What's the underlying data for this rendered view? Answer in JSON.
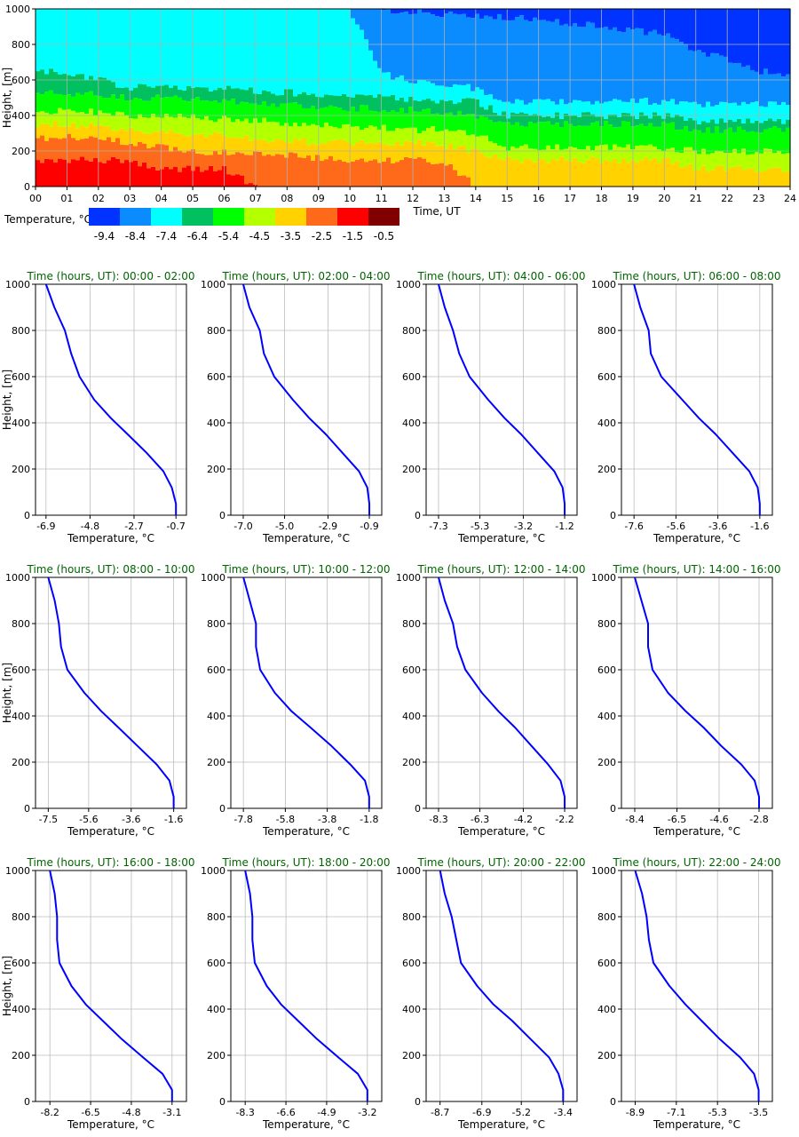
{
  "heatmap": {
    "ylabel": "Height, [m]",
    "xlabel": "Time, UT",
    "x_ticks": [
      "00",
      "01",
      "02",
      "03",
      "04",
      "05",
      "06",
      "07",
      "08",
      "09",
      "10",
      "11",
      "12",
      "13",
      "14",
      "15",
      "16",
      "17",
      "18",
      "19",
      "20",
      "21",
      "22",
      "23",
      "24"
    ],
    "y_ticks": [
      "0",
      "200",
      "400",
      "600",
      "800",
      "1000"
    ],
    "colorbar_label": "Temperature, °C",
    "colorbar_values": [
      "-9.4",
      "-8.4",
      "-7.4",
      "-6.4",
      "-5.4",
      "-4.5",
      "-3.5",
      "-2.5",
      "-1.5",
      "-0.5"
    ],
    "colors": [
      "#0033ff",
      "#0a8cff",
      "#00ffff",
      "#00c060",
      "#00ff00",
      "#b4ff00",
      "#ffd200",
      "#ff6a1a",
      "#ff0000",
      "#800000"
    ]
  },
  "profiles": {
    "title_prefix": "Time (hours, UT): ",
    "ylabel": "Height, [m]",
    "xlabel": "Temperature, °C",
    "y_ticks": [
      "0",
      "200",
      "400",
      "600",
      "800",
      "1000"
    ],
    "title_color": "#006400",
    "line_color": "#0000ff"
  },
  "chart_data": [
    {
      "type": "heatmap",
      "x_range_hours": [
        0,
        24
      ],
      "y_range_m": [
        0,
        1000
      ],
      "bands_description": "temperature layers (band boundary heights in m, per hour)",
      "band_hours": [
        0,
        1,
        2,
        3,
        4,
        5,
        6,
        7,
        8,
        9,
        10,
        11,
        12,
        13,
        14,
        15,
        16,
        17,
        18,
        19,
        20,
        21,
        22,
        23,
        24
      ],
      "band_boundaries_m": {
        "-1.5|-2.5": [
          150,
          150,
          150,
          150,
          100,
          100,
          100,
          0,
          0,
          0,
          0,
          0,
          0,
          0,
          0,
          0,
          0,
          0,
          0,
          0,
          0,
          0,
          0,
          0,
          0
        ],
        "-2.5|-3.5": [
          270,
          280,
          270,
          250,
          220,
          200,
          190,
          180,
          180,
          160,
          150,
          150,
          150,
          140,
          0,
          0,
          0,
          0,
          0,
          0,
          0,
          0,
          0,
          0,
          0
        ],
        "-3.5|-4.5": [
          350,
          350,
          340,
          320,
          300,
          300,
          290,
          270,
          260,
          250,
          250,
          250,
          250,
          230,
          200,
          150,
          150,
          150,
          150,
          150,
          150,
          100,
          100,
          100,
          100
        ],
        "-4.5|-5.4": [
          430,
          420,
          420,
          400,
          390,
          390,
          380,
          370,
          360,
          350,
          340,
          330,
          320,
          320,
          300,
          220,
          220,
          220,
          220,
          220,
          220,
          200,
          200,
          200,
          200
        ],
        "-5.4|-6.4": [
          530,
          520,
          520,
          500,
          500,
          490,
          480,
          470,
          460,
          450,
          440,
          440,
          430,
          420,
          400,
          350,
          350,
          350,
          350,
          350,
          350,
          320,
          320,
          320,
          320
        ],
        "-6.4|-7.4": [
          650,
          640,
          600,
          560,
          560,
          560,
          550,
          540,
          530,
          520,
          510,
          500,
          490,
          480,
          480,
          400,
          400,
          400,
          400,
          400,
          400,
          370,
          370,
          370,
          370
        ],
        "-7.4|-8.4": [
          1000,
          1000,
          1000,
          1000,
          1000,
          1000,
          1000,
          1000,
          1000,
          1000,
          1000,
          640,
          590,
          580,
          550,
          480,
          480,
          480,
          480,
          480,
          480,
          460,
          460,
          460,
          460
        ],
        "-8.4|-9.4": [
          1000,
          1000,
          1000,
          1000,
          1000,
          1000,
          1000,
          1000,
          1000,
          1000,
          1000,
          1000,
          980,
          970,
          960,
          950,
          940,
          920,
          900,
          880,
          860,
          760,
          720,
          650,
          630
        ]
      },
      "xlabel": "Time, UT",
      "ylabel": "Height, [m]",
      "colorbar_label": "Temperature, °C"
    },
    {
      "type": "line",
      "title": "Time (hours, UT): 00:00 - 02:00",
      "xlabel": "Temperature, °C",
      "ylabel": "Height, [m]",
      "xlim": [
        -7.4,
        -0.2
      ],
      "x_ticks": [
        "-6.9",
        "-4.8",
        "-2.7",
        "-0.7"
      ],
      "ylim": [
        0,
        1000
      ],
      "series": [
        {
          "x": [
            -6.9,
            -6.5,
            -6.0,
            -5.7,
            -5.3,
            -4.6,
            -3.8,
            -3.0,
            -2.1,
            -1.3,
            -0.9,
            -0.7,
            -0.7
          ],
          "y": [
            1000,
            900,
            800,
            700,
            600,
            500,
            420,
            350,
            270,
            190,
            120,
            50,
            0
          ]
        }
      ]
    },
    {
      "type": "line",
      "title": "Time (hours, UT): 02:00 - 04:00",
      "xlabel": "Temperature, °C",
      "ylabel": "Height, [m]",
      "xlim": [
        -7.6,
        -0.3
      ],
      "x_ticks": [
        "-7.0",
        "-5.0",
        "-2.9",
        "-0.9"
      ],
      "ylim": [
        0,
        1000
      ],
      "series": [
        {
          "x": [
            -7.0,
            -6.7,
            -6.2,
            -6.0,
            -5.5,
            -4.6,
            -3.8,
            -3.0,
            -2.2,
            -1.4,
            -1.0,
            -0.9,
            -0.9
          ],
          "y": [
            1000,
            900,
            800,
            700,
            600,
            500,
            420,
            350,
            270,
            190,
            120,
            50,
            0
          ]
        }
      ]
    },
    {
      "type": "line",
      "title": "Time (hours, UT): 04:00 - 06:00",
      "xlabel": "Temperature, °C",
      "ylabel": "Height, [m]",
      "xlim": [
        -7.9,
        -0.6
      ],
      "x_ticks": [
        "-7.3",
        "-5.3",
        "-3.2",
        "-1.2"
      ],
      "ylim": [
        0,
        1000
      ],
      "series": [
        {
          "x": [
            -7.3,
            -7.0,
            -6.6,
            -6.3,
            -5.8,
            -4.9,
            -4.1,
            -3.3,
            -2.5,
            -1.7,
            -1.3,
            -1.2,
            -1.2
          ],
          "y": [
            1000,
            900,
            800,
            700,
            600,
            500,
            420,
            350,
            270,
            190,
            120,
            50,
            0
          ]
        }
      ]
    },
    {
      "type": "line",
      "title": "Time (hours, UT): 06:00 - 08:00",
      "xlabel": "Temperature, °C",
      "ylabel": "Height, [m]",
      "xlim": [
        -8.2,
        -1.0
      ],
      "x_ticks": [
        "-7.6",
        "-5.6",
        "-3.6",
        "-1.6"
      ],
      "ylim": [
        0,
        1000
      ],
      "series": [
        {
          "x": [
            -7.6,
            -7.3,
            -6.9,
            -6.8,
            -6.3,
            -5.3,
            -4.5,
            -3.7,
            -2.9,
            -2.1,
            -1.7,
            -1.6,
            -1.6
          ],
          "y": [
            1000,
            900,
            800,
            700,
            600,
            500,
            420,
            350,
            270,
            190,
            120,
            50,
            0
          ]
        }
      ]
    },
    {
      "type": "line",
      "title": "Time (hours, UT): 08:00 - 10:00",
      "xlabel": "Temperature, °C",
      "ylabel": "Height, [m]",
      "xlim": [
        -8.1,
        -1.0
      ],
      "x_ticks": [
        "-7.5",
        "-5.6",
        "-3.6",
        "-1.6"
      ],
      "ylim": [
        0,
        1000
      ],
      "series": [
        {
          "x": [
            -7.5,
            -7.2,
            -7.0,
            -6.9,
            -6.6,
            -5.8,
            -5.0,
            -4.2,
            -3.3,
            -2.4,
            -1.8,
            -1.6,
            -1.6
          ],
          "y": [
            1000,
            900,
            800,
            700,
            600,
            500,
            420,
            350,
            270,
            190,
            120,
            50,
            0
          ]
        }
      ]
    },
    {
      "type": "line",
      "title": "Time (hours, UT): 10:00 - 12:00",
      "xlabel": "Temperature, °C",
      "ylabel": "Height, [m]",
      "xlim": [
        -8.4,
        -1.2
      ],
      "x_ticks": [
        "-7.8",
        "-5.8",
        "-3.8",
        "-1.8"
      ],
      "ylim": [
        0,
        1000
      ],
      "series": [
        {
          "x": [
            -7.8,
            -7.5,
            -7.2,
            -7.2,
            -7.0,
            -6.3,
            -5.5,
            -4.6,
            -3.6,
            -2.7,
            -2.0,
            -1.8,
            -1.8
          ],
          "y": [
            1000,
            900,
            800,
            700,
            600,
            500,
            420,
            350,
            270,
            190,
            120,
            50,
            0
          ]
        }
      ]
    },
    {
      "type": "line",
      "title": "Time (hours, UT): 12:00 - 14:00",
      "xlabel": "Temperature, °C",
      "ylabel": "Height, [m]",
      "xlim": [
        -8.9,
        -1.6
      ],
      "x_ticks": [
        "-8.3",
        "-6.3",
        "-4.2",
        "-2.2"
      ],
      "ylim": [
        0,
        1000
      ],
      "series": [
        {
          "x": [
            -8.3,
            -8.0,
            -7.6,
            -7.4,
            -7.0,
            -6.2,
            -5.4,
            -4.6,
            -3.8,
            -3.0,
            -2.4,
            -2.2,
            -2.2
          ],
          "y": [
            1000,
            900,
            800,
            700,
            600,
            500,
            420,
            350,
            270,
            190,
            120,
            50,
            0
          ]
        }
      ]
    },
    {
      "type": "line",
      "title": "Time (hours, UT): 14:00 - 16:00",
      "xlabel": "Temperature, °C",
      "ylabel": "Height, [m]",
      "xlim": [
        -9.0,
        -2.2
      ],
      "x_ticks": [
        "-8.4",
        "-6.5",
        "-4.6",
        "-2.8"
      ],
      "ylim": [
        0,
        1000
      ],
      "series": [
        {
          "x": [
            -8.4,
            -8.1,
            -7.8,
            -7.8,
            -7.6,
            -6.9,
            -6.1,
            -5.3,
            -4.5,
            -3.6,
            -3.0,
            -2.8,
            -2.8
          ],
          "y": [
            1000,
            900,
            800,
            700,
            600,
            500,
            420,
            350,
            270,
            190,
            120,
            50,
            0
          ]
        }
      ]
    },
    {
      "type": "line",
      "title": "Time (hours, UT): 16:00 - 18:00",
      "xlabel": "Temperature, °C",
      "ylabel": "Height, [m]",
      "xlim": [
        -8.8,
        -2.5
      ],
      "x_ticks": [
        "-8.2",
        "-6.5",
        "-4.8",
        "-3.1"
      ],
      "ylim": [
        0,
        1000
      ],
      "series": [
        {
          "x": [
            -8.2,
            -8.0,
            -7.9,
            -7.9,
            -7.8,
            -7.3,
            -6.7,
            -6.0,
            -5.2,
            -4.3,
            -3.5,
            -3.1,
            -3.1
          ],
          "y": [
            1000,
            900,
            800,
            700,
            600,
            500,
            420,
            350,
            270,
            190,
            120,
            50,
            0
          ]
        }
      ]
    },
    {
      "type": "line",
      "title": "Time (hours, UT): 18:00 - 20:00",
      "xlabel": "Temperature, °C",
      "ylabel": "Height, [m]",
      "xlim": [
        -8.9,
        -2.6
      ],
      "x_ticks": [
        "-8.3",
        "-6.6",
        "-4.9",
        "-3.2"
      ],
      "ylim": [
        0,
        1000
      ],
      "series": [
        {
          "x": [
            -8.3,
            -8.1,
            -8.0,
            -8.0,
            -7.9,
            -7.4,
            -6.8,
            -6.1,
            -5.3,
            -4.4,
            -3.6,
            -3.2,
            -3.2
          ],
          "y": [
            1000,
            900,
            800,
            700,
            600,
            500,
            420,
            350,
            270,
            190,
            120,
            50,
            0
          ]
        }
      ]
    },
    {
      "type": "line",
      "title": "Time (hours, UT): 20:00 - 22:00",
      "xlabel": "Temperature, °C",
      "ylabel": "Height, [m]",
      "xlim": [
        -9.3,
        -2.8
      ],
      "x_ticks": [
        "-8.7",
        "-6.9",
        "-5.2",
        "-3.4"
      ],
      "ylim": [
        0,
        1000
      ],
      "series": [
        {
          "x": [
            -8.7,
            -8.5,
            -8.2,
            -8.0,
            -7.8,
            -7.1,
            -6.4,
            -5.6,
            -4.8,
            -4.0,
            -3.6,
            -3.4,
            -3.4
          ],
          "y": [
            1000,
            900,
            800,
            700,
            600,
            500,
            420,
            350,
            270,
            190,
            120,
            50,
            0
          ]
        }
      ]
    },
    {
      "type": "line",
      "title": "Time (hours, UT): 22:00 - 24:00",
      "xlabel": "Temperature, °C",
      "ylabel": "Height, [m]",
      "xlim": [
        -9.5,
        -2.9
      ],
      "x_ticks": [
        "-8.9",
        "-7.1",
        "-5.3",
        "-3.5"
      ],
      "ylim": [
        0,
        1000
      ],
      "series": [
        {
          "x": [
            -8.9,
            -8.6,
            -8.4,
            -8.3,
            -8.1,
            -7.4,
            -6.7,
            -6.0,
            -5.2,
            -4.3,
            -3.7,
            -3.5,
            -3.5
          ],
          "y": [
            1000,
            900,
            800,
            700,
            600,
            500,
            420,
            350,
            270,
            190,
            120,
            50,
            0
          ]
        }
      ]
    }
  ]
}
